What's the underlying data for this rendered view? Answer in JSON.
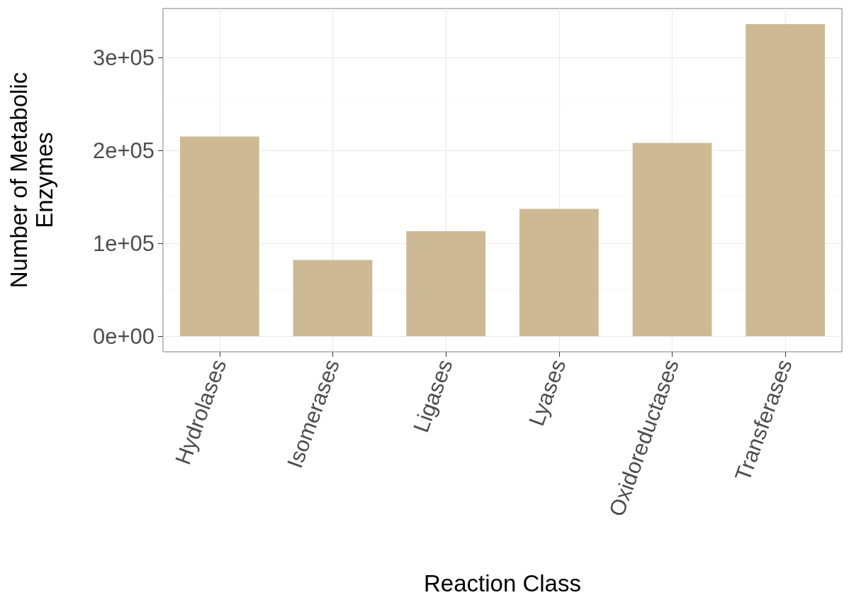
{
  "chart_data": {
    "type": "bar",
    "xlabel": "Reaction Class",
    "ylabel": "Number of Metabolic Enzymes",
    "categories": [
      "Hydrolases",
      "Isomerases",
      "Ligases",
      "Lyases",
      "Oxidoreductases",
      "Transferases"
    ],
    "values": [
      215000,
      82000,
      113000,
      137000,
      208000,
      336000
    ],
    "color": "#cdb994",
    "ylim": [
      -16800,
      352800
    ],
    "yticks": [
      {
        "value": 0,
        "label": "0e+00"
      },
      {
        "value": 100000,
        "label": "1e+05"
      },
      {
        "value": 200000,
        "label": "2e+05"
      },
      {
        "value": 300000,
        "label": "3e+05"
      }
    ],
    "grid": true
  }
}
